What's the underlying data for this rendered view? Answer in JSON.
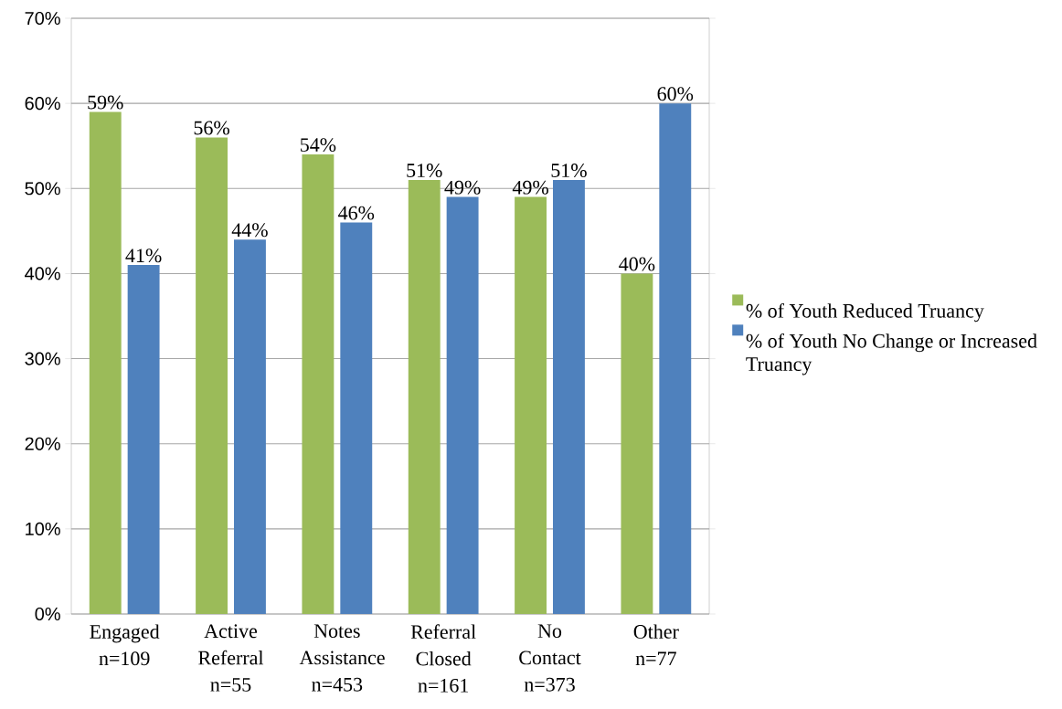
{
  "chart_data": {
    "type": "bar",
    "categories": [
      "Engaged n=109",
      "Active Referral n=55",
      "Notes Assistance n=453",
      "Referral Closed n=161",
      "No Contact n=373",
      "Other n=77"
    ],
    "series": [
      {
        "name": "% of Youth Reduced Truancy",
        "color": "#9bbb59",
        "values": [
          59,
          56,
          54,
          51,
          49,
          40
        ],
        "value_labels": [
          "59%",
          "56%",
          "54%",
          "51%",
          "49%",
          "40%"
        ]
      },
      {
        "name": "% of Youth No Change or Increased Truancy",
        "color": "#4f81bd",
        "values": [
          41,
          44,
          46,
          49,
          51,
          60
        ],
        "value_labels": [
          "41%",
          "44%",
          "46%",
          "49%",
          "51%",
          "60%"
        ]
      }
    ],
    "ylim": [
      0,
      70
    ],
    "yticks": [
      {
        "value": 0,
        "label": "0%"
      },
      {
        "value": 10,
        "label": "10%"
      },
      {
        "value": 20,
        "label": "20%"
      },
      {
        "value": 30,
        "label": "30%"
      },
      {
        "value": 40,
        "label": "40%"
      },
      {
        "value": 50,
        "label": "50%"
      },
      {
        "value": 60,
        "label": "60%"
      },
      {
        "value": 70,
        "label": "70%"
      }
    ],
    "grid": "y",
    "legend": "right"
  }
}
